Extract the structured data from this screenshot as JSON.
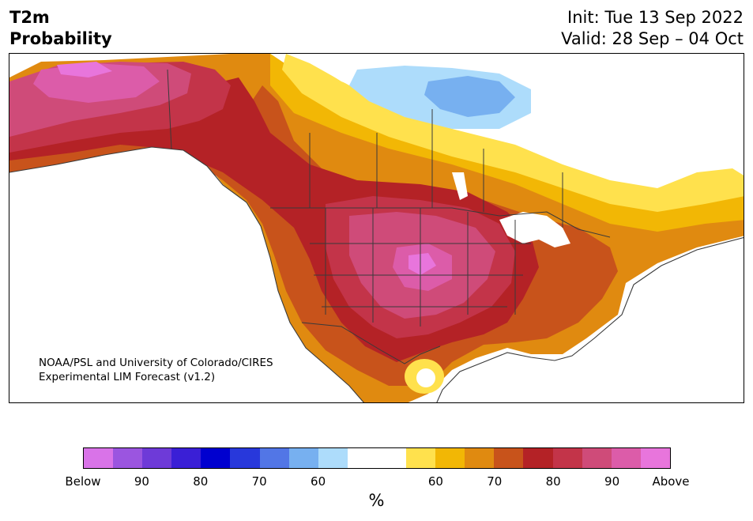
{
  "title": {
    "line1": "T2m",
    "line2": "Probability"
  },
  "init_label": "Init: Tue 13 Sep 2022",
  "valid_label": "Valid: 28 Sep – 04 Oct",
  "credit": {
    "line1": "NOAA/PSL and University of Colorado/CIRES",
    "line2": "Experimental LIM Forecast (v1.2)"
  },
  "colorbar": {
    "colors": [
      "#d973e8",
      "#9b55e0",
      "#6e3ad8",
      "#3a1fd6",
      "#0000cf",
      "#2838db",
      "#5276e6",
      "#77b0f0",
      "#addcfb",
      "#ffffff",
      "#ffffff",
      "#ffe14d",
      "#f2b705",
      "#e08a10",
      "#c8531b",
      "#b42226",
      "#c33449",
      "#cf4b79",
      "#dc5ca9",
      "#e875dc"
    ],
    "tick_labels": [
      "Below",
      "90",
      "80",
      "70",
      "60",
      "60",
      "70",
      "80",
      "90",
      "Above"
    ],
    "unit": "%"
  },
  "map": {
    "region": "North America",
    "palette": {
      "white": "#ffffff",
      "lightblue": "#addcfb",
      "blue": "#77b0f0",
      "yellow": "#ffe14d",
      "gold": "#f2b705",
      "orange": "#e08a10",
      "darkorange": "#c8531b",
      "red": "#b42226",
      "crimson": "#c33449",
      "rose": "#cf4b79",
      "pink": "#dc5ca9",
      "magenta": "#e875dc",
      "border": "#3a3a3a"
    }
  }
}
